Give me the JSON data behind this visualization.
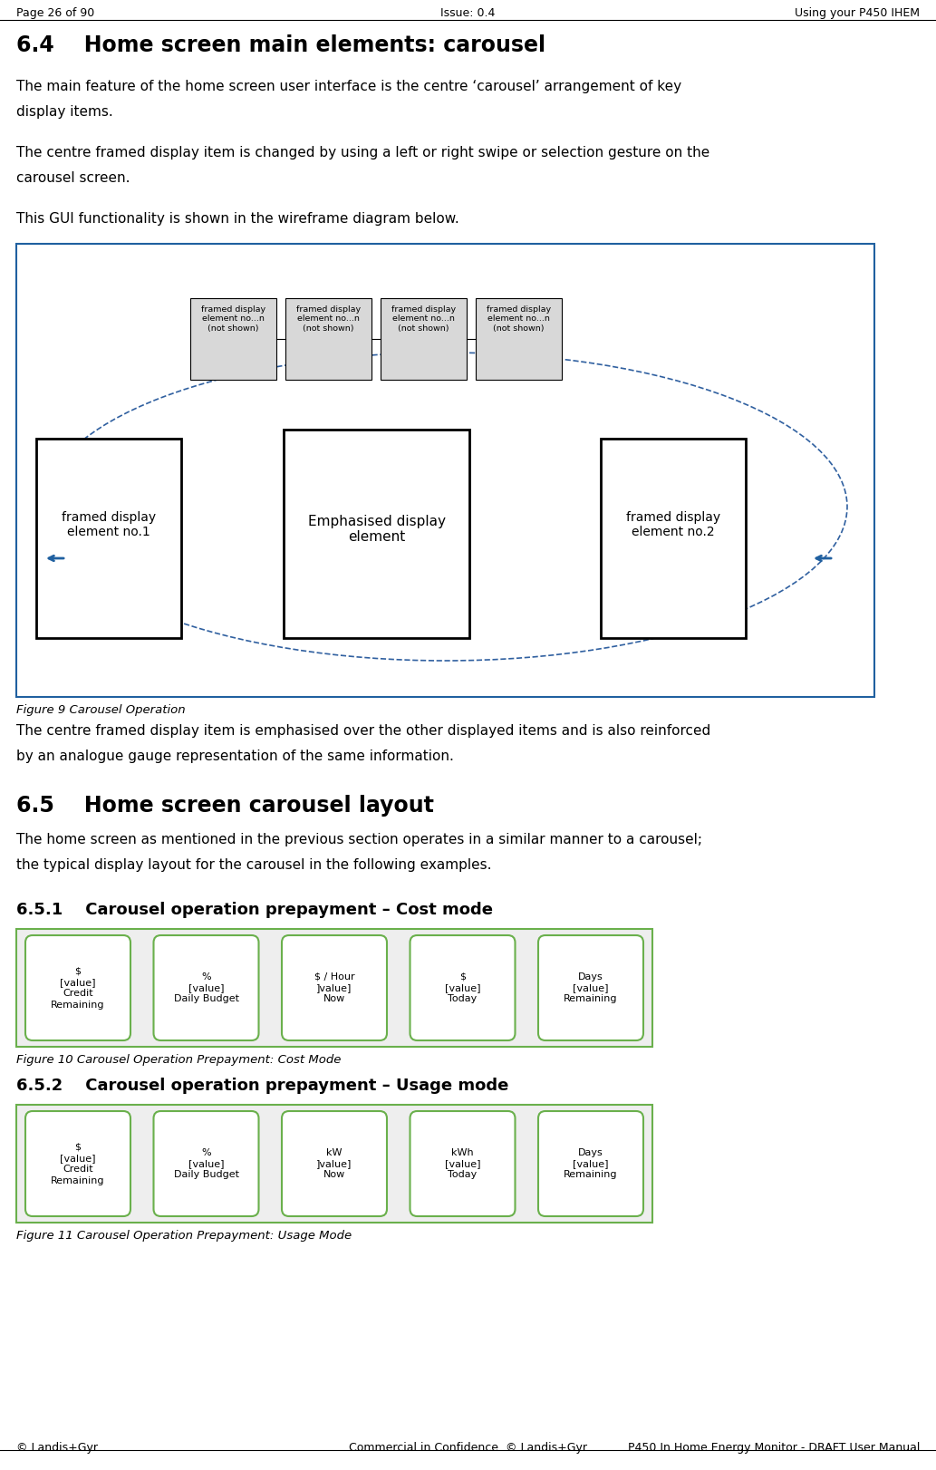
{
  "page_header_left": "Page 26 of 90",
  "page_header_center": "Issue: 0.4",
  "page_header_right": "Using your P450 IHEM",
  "footer_left": "© Landis+Gyr",
  "footer_center": "Commercial in Confidence. © Landis+Gyr",
  "footer_right": "P450 In Home Energy Monitor - DRAFT User Manual",
  "section_64_title": "6.4    Home screen main elements: carousel",
  "section_64_body1a": "The main feature of the home screen user interface is the centre ‘carousel’ arrangement of key",
  "section_64_body1b": "display items.",
  "section_64_body2a": "The centre framed display item is changed by using a left or right swipe or selection gesture on the",
  "section_64_body2b": "carousel screen.",
  "section_64_body3": "This GUI functionality is shown in the wireframe diagram below.",
  "fig9_caption": "Figure 9 Carousel Operation",
  "fig9_body1": "The centre framed display item is emphasised over the other displayed items and is also reinforced",
  "fig9_body2": "by an analogue gauge representation of the same information.",
  "section_65_title": "6.5    Home screen carousel layout",
  "section_65_body1": "The home screen as mentioned in the previous section operates in a similar manner to a carousel;",
  "section_65_body2": "the typical display layout for the carousel in the following examples.",
  "section_651_title": "6.5.1    Carousel operation prepayment – Cost mode",
  "fig10_caption": "Figure 10 Carousel Operation Prepayment: Cost Mode",
  "section_652_title": "6.5.2    Carousel operation prepayment – Usage mode",
  "fig11_caption": "Figure 11 Carousel Operation Prepayment: Usage Mode",
  "carousel_cost_items": [
    [
      "$",
      "[value]",
      "Credit",
      "Remaining"
    ],
    [
      "%",
      "[value]",
      "Daily Budget",
      ""
    ],
    [
      "$ / Hour",
      "]value]",
      "Now",
      ""
    ],
    [
      "$",
      "[value]",
      "Today",
      ""
    ],
    [
      "Days",
      "[value]",
      "Remaining",
      ""
    ]
  ],
  "carousel_usage_items": [
    [
      "$",
      "[value]",
      "Credit",
      "Remaining"
    ],
    [
      "%",
      "[value]",
      "Daily Budget",
      ""
    ],
    [
      "kW",
      "]value]",
      "Now",
      ""
    ],
    [
      "kWh",
      "[value]",
      "Today",
      ""
    ],
    [
      "Days",
      "[value]",
      "Remaining",
      ""
    ]
  ],
  "bg_color": "#ffffff",
  "diagram_border_color": "#2060a0",
  "ellipse_color": "#3060a0",
  "arrow_color": "#2060a0",
  "carousel_border_color": "#6ab04c",
  "carousel_bg_color": "#f0f0f0",
  "carousel_item_bg": "#ffffff",
  "small_box_fill": "#d8d8d8"
}
